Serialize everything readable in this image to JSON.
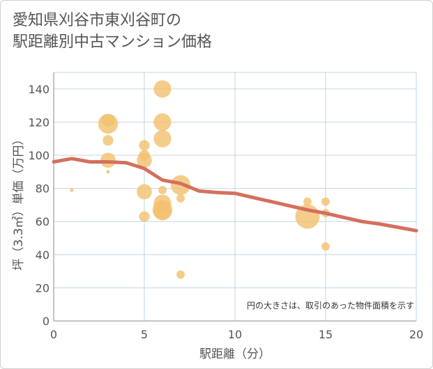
{
  "chart_data": {
    "type": "scatter",
    "title": "愛知県刈谷市東刈谷町の\n駅距離別中古マンション価格",
    "xlabel": "駅距離（分）",
    "ylabel": "坪（3.3㎡）単価（万円）",
    "xlim": [
      0,
      20
    ],
    "ylim": [
      0,
      150
    ],
    "x_ticks": [
      "0",
      "5",
      "10",
      "15",
      "20"
    ],
    "y_ticks": [
      "0",
      "20",
      "40",
      "60",
      "80",
      "100",
      "120",
      "140"
    ],
    "grid": true,
    "note": "円の大きさは、取引のあった物件面積を示す",
    "colors": {
      "bubble": "#f2c16e",
      "line": "#d4705d",
      "grid": "#c6d5e3",
      "text": "#555555"
    },
    "points": [
      {
        "x": 1,
        "y": 79,
        "size": 1
      },
      {
        "x": 3,
        "y": 121,
        "size": 5
      },
      {
        "x": 3,
        "y": 119,
        "size": 8
      },
      {
        "x": 3,
        "y": 109,
        "size": 4
      },
      {
        "x": 3,
        "y": 97,
        "size": 6
      },
      {
        "x": 3,
        "y": 90,
        "size": 1
      },
      {
        "x": 5,
        "y": 106,
        "size": 4
      },
      {
        "x": 5,
        "y": 100,
        "size": 4
      },
      {
        "x": 5,
        "y": 97,
        "size": 6
      },
      {
        "x": 5,
        "y": 78,
        "size": 6
      },
      {
        "x": 5,
        "y": 63,
        "size": 4
      },
      {
        "x": 6,
        "y": 140,
        "size": 7
      },
      {
        "x": 6,
        "y": 120,
        "size": 7
      },
      {
        "x": 6,
        "y": 110,
        "size": 7
      },
      {
        "x": 6,
        "y": 79,
        "size": 3
      },
      {
        "x": 6,
        "y": 71,
        "size": 7
      },
      {
        "x": 6,
        "y": 67,
        "size": 8
      },
      {
        "x": 6,
        "y": 66,
        "size": 7
      },
      {
        "x": 7,
        "y": 82,
        "size": 8
      },
      {
        "x": 7,
        "y": 74,
        "size": 3
      },
      {
        "x": 7,
        "y": 28,
        "size": 3
      },
      {
        "x": 14,
        "y": 72,
        "size": 3
      },
      {
        "x": 14,
        "y": 63,
        "size": 10
      },
      {
        "x": 15,
        "y": 72,
        "size": 3
      },
      {
        "x": 15,
        "y": 65,
        "size": 3
      },
      {
        "x": 15,
        "y": 45,
        "size": 3
      }
    ],
    "series": [
      {
        "x": [
          0,
          1,
          2,
          3,
          4,
          5,
          6,
          7,
          8,
          9,
          10,
          11,
          12,
          13,
          14,
          15,
          16,
          17,
          18,
          19,
          20
        ],
        "values": [
          96,
          98,
          96,
          96,
          95.5,
          92,
          85,
          83,
          78.5,
          77.5,
          77,
          74.5,
          72,
          69.5,
          67,
          65,
          62.5,
          60,
          58.5,
          56.5,
          54.5
        ]
      }
    ]
  }
}
